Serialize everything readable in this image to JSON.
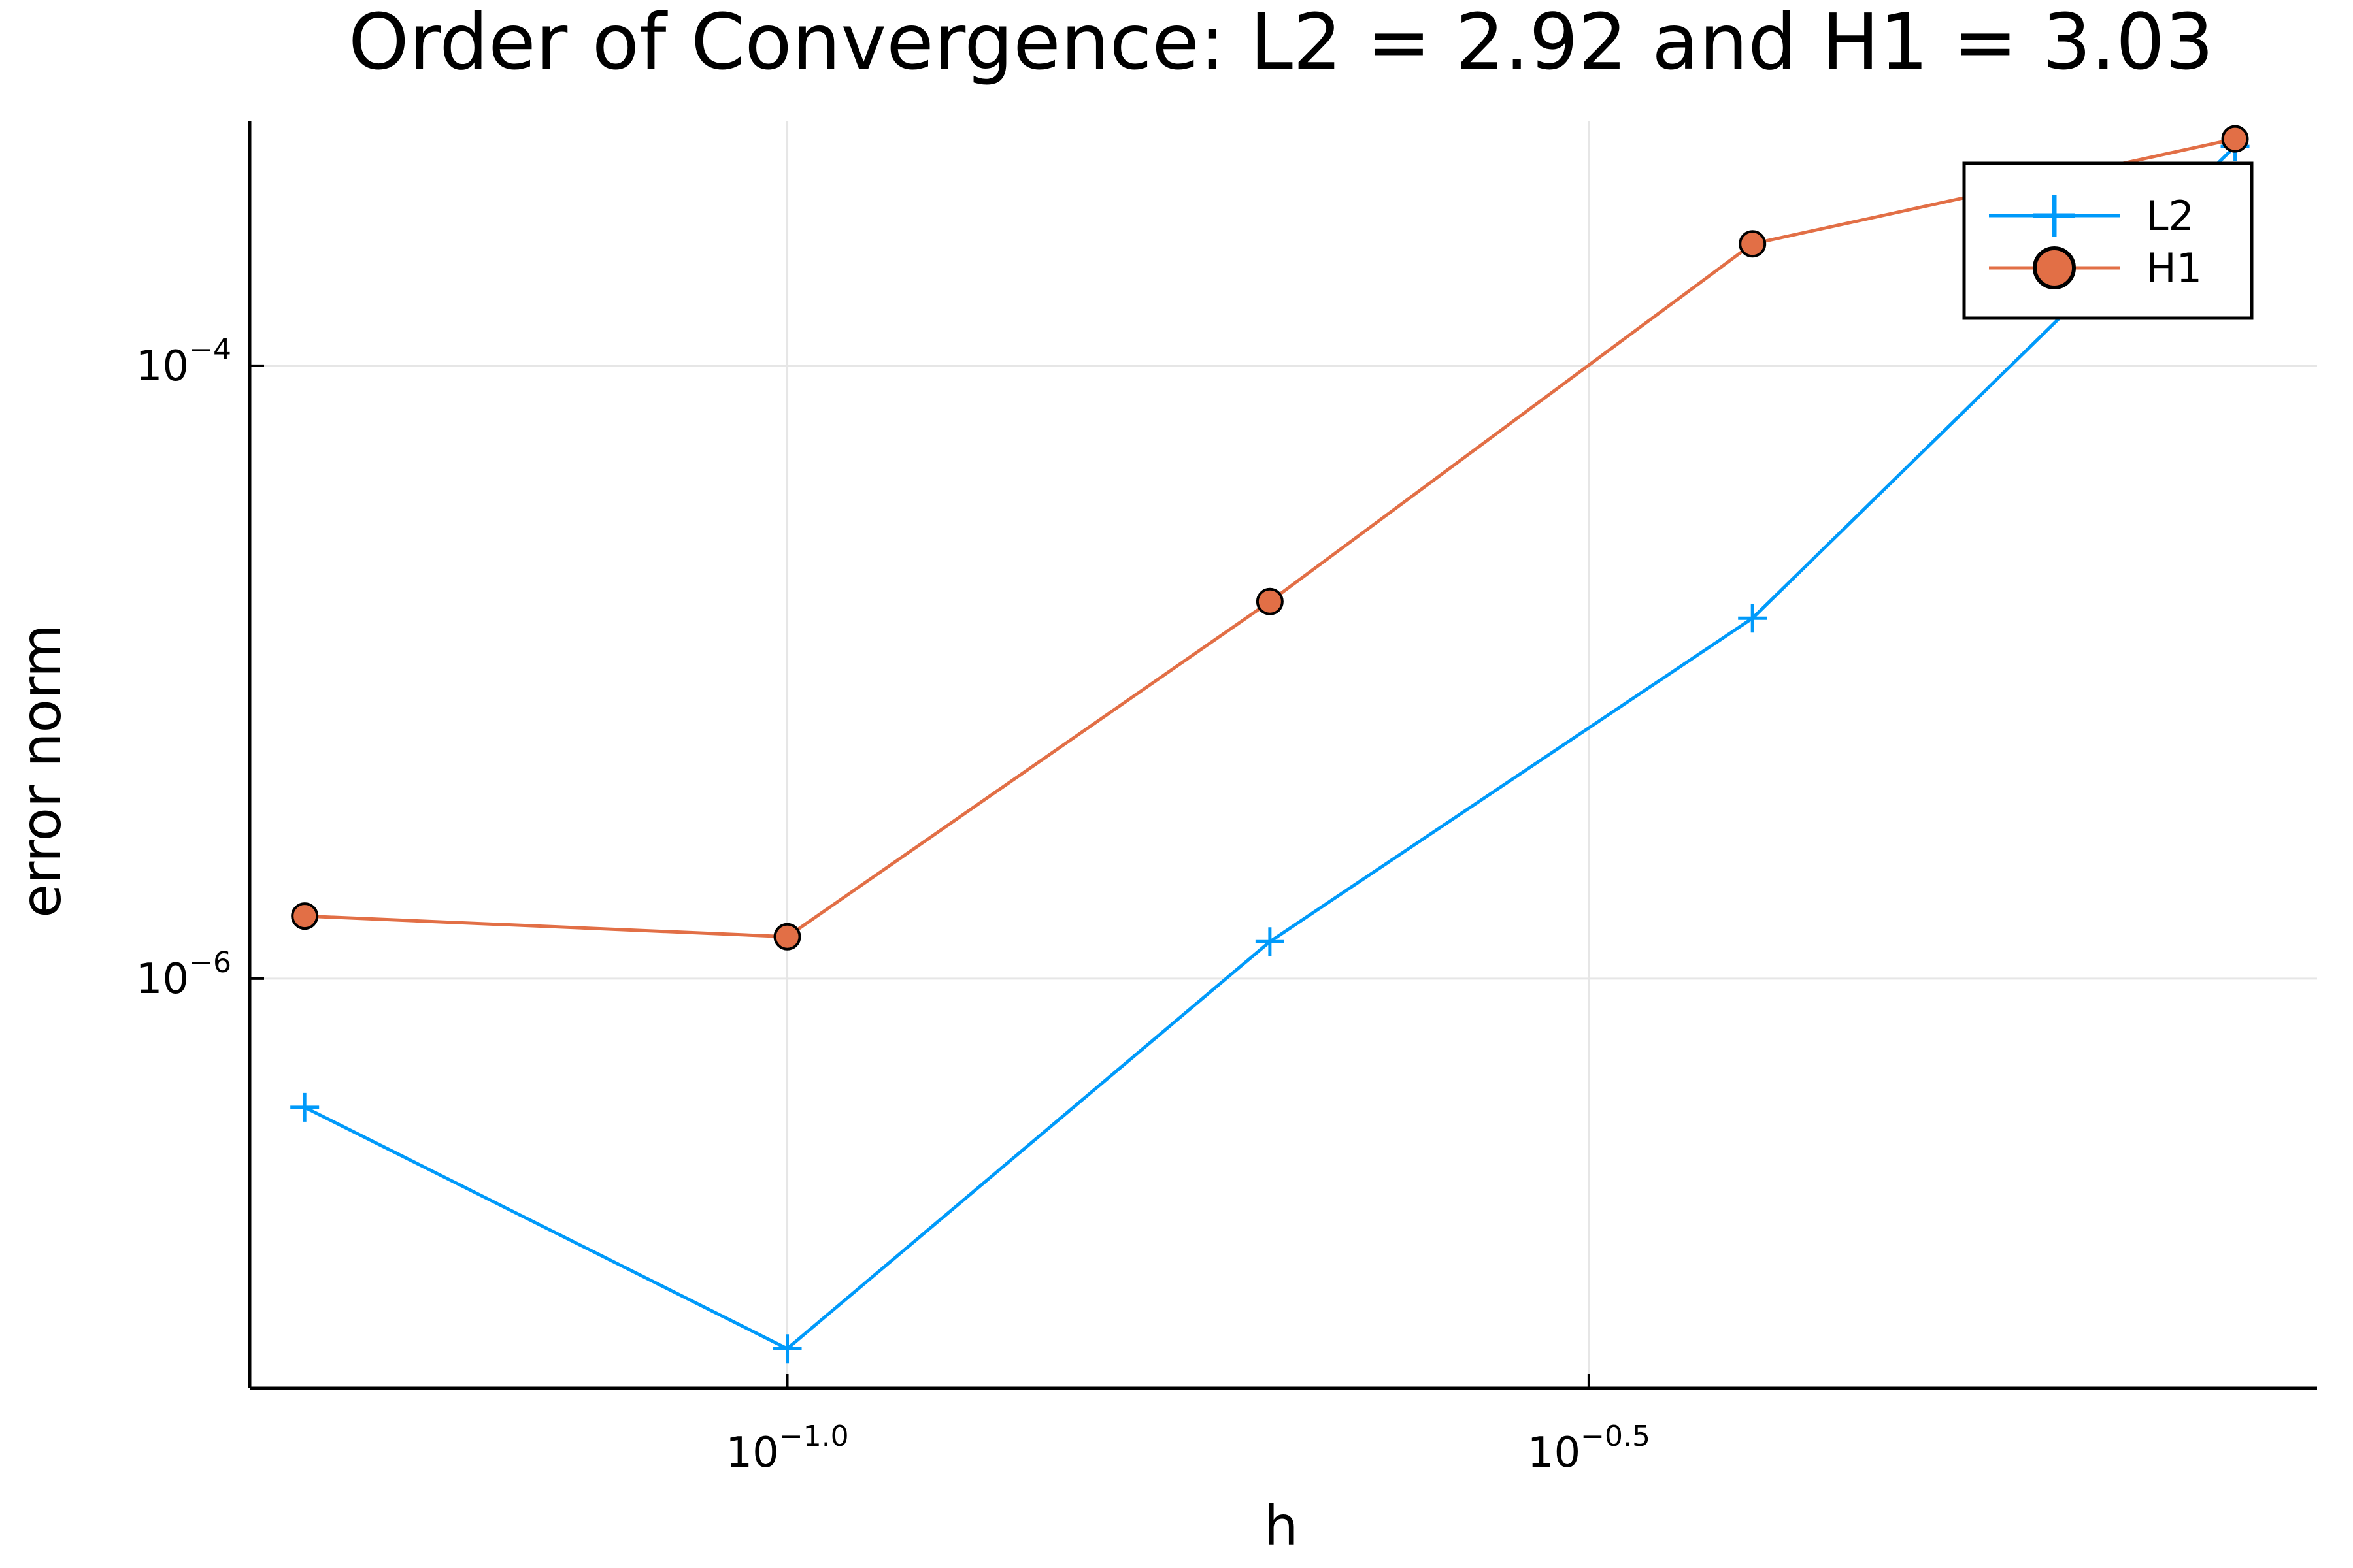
{
  "chart_data": {
    "type": "line",
    "title": "Order of Convergence: L2 = 2.92 and H1 = 3.03",
    "xlabel": "h",
    "ylabel": "error norm",
    "xscale": "log10",
    "yscale": "log10",
    "xlim": [
      0.0462,
      0.9
    ],
    "ylim": [
      4.6e-08,
      0.00063
    ],
    "xticks": [
      {
        "value": 0.1,
        "base": "10",
        "exp": "−1.0"
      },
      {
        "value": 0.31623,
        "base": "10",
        "exp": "−0.5"
      }
    ],
    "yticks": [
      {
        "value": 0.0001,
        "base": "10",
        "exp": "−4"
      },
      {
        "value": 1e-06,
        "base": "10",
        "exp": "−6"
      }
    ],
    "grid": true,
    "legend_position": "top-right",
    "x": [
      0.05,
      0.1,
      0.2,
      0.4,
      0.8
    ],
    "series": [
      {
        "name": "L2",
        "color": "#009AFA",
        "marker": "cross",
        "values": [
          3.8e-07,
          6.2e-08,
          1.32e-06,
          1.5e-05,
          0.00052
        ]
      },
      {
        "name": "H1",
        "color": "#E26F46",
        "marker": "circle",
        "values": [
          1.6e-06,
          1.37e-06,
          1.7e-05,
          0.00025,
          0.00055
        ]
      }
    ]
  }
}
